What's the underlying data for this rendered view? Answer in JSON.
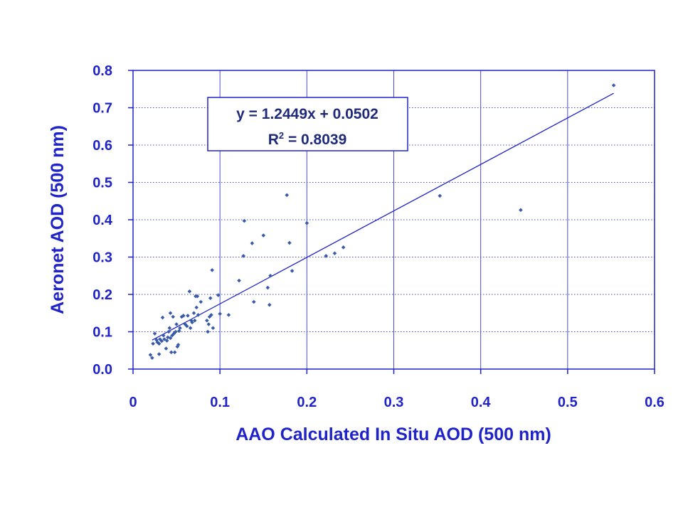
{
  "chart_data": {
    "type": "scatter",
    "xlabel": "AAO Calculated In Situ AOD (500 nm)",
    "ylabel": "Aeronet AOD (500 nm)",
    "xlim": [
      0,
      0.6
    ],
    "ylim": [
      0,
      0.8
    ],
    "x_ticks": [
      "0",
      "0.1",
      "0.2",
      "0.3",
      "0.4",
      "0.5",
      "0.6"
    ],
    "y_ticks": [
      "0.0",
      "0.1",
      "0.2",
      "0.3",
      "0.4",
      "0.5",
      "0.6",
      "0.7",
      "0.8"
    ],
    "grid": true,
    "colors": {
      "axis": "#1f23c8",
      "points": "#3a5ba8",
      "grid": "#4a4ad8",
      "trendline": "#1f23c8"
    },
    "trendline": {
      "slope": 1.2449,
      "intercept": 0.0502,
      "x_range": [
        0.022,
        0.553
      ],
      "equation": "y = 1.2449x + 0.0502",
      "r2_prefix": "R",
      "r2_sup": "2",
      "r2_suffix": " = 0.8039"
    },
    "series": [
      {
        "points": [
          [
            0.02,
            0.038
          ],
          [
            0.022,
            0.03
          ],
          [
            0.023,
            0.068
          ],
          [
            0.025,
            0.095
          ],
          [
            0.027,
            0.078
          ],
          [
            0.028,
            0.072
          ],
          [
            0.03,
            0.04
          ],
          [
            0.03,
            0.068
          ],
          [
            0.031,
            0.08
          ],
          [
            0.033,
            0.075
          ],
          [
            0.034,
            0.138
          ],
          [
            0.035,
            0.09
          ],
          [
            0.036,
            0.08
          ],
          [
            0.038,
            0.055
          ],
          [
            0.039,
            0.076
          ],
          [
            0.04,
            0.085
          ],
          [
            0.041,
            0.1
          ],
          [
            0.042,
            0.11
          ],
          [
            0.043,
            0.083
          ],
          [
            0.043,
            0.15
          ],
          [
            0.044,
            0.045
          ],
          [
            0.045,
            0.09
          ],
          [
            0.046,
            0.14
          ],
          [
            0.047,
            0.095
          ],
          [
            0.048,
            0.045
          ],
          [
            0.049,
            0.1
          ],
          [
            0.05,
            0.12
          ],
          [
            0.051,
            0.06
          ],
          [
            0.052,
            0.065
          ],
          [
            0.053,
            0.102
          ],
          [
            0.054,
            0.11
          ],
          [
            0.056,
            0.14
          ],
          [
            0.058,
            0.143
          ],
          [
            0.06,
            0.12
          ],
          [
            0.062,
            0.115
          ],
          [
            0.063,
            0.143
          ],
          [
            0.065,
            0.208
          ],
          [
            0.066,
            0.11
          ],
          [
            0.067,
            0.13
          ],
          [
            0.068,
            0.125
          ],
          [
            0.07,
            0.15
          ],
          [
            0.071,
            0.13
          ],
          [
            0.072,
            0.195
          ],
          [
            0.073,
            0.165
          ],
          [
            0.074,
            0.195
          ],
          [
            0.075,
            0.145
          ],
          [
            0.078,
            0.18
          ],
          [
            0.085,
            0.13
          ],
          [
            0.086,
            0.1
          ],
          [
            0.087,
            0.12
          ],
          [
            0.088,
            0.14
          ],
          [
            0.089,
            0.19
          ],
          [
            0.09,
            0.145
          ],
          [
            0.091,
            0.265
          ],
          [
            0.092,
            0.11
          ],
          [
            0.098,
            0.198
          ],
          [
            0.1,
            0.148
          ],
          [
            0.11,
            0.145
          ],
          [
            0.122,
            0.237
          ],
          [
            0.127,
            0.303
          ],
          [
            0.128,
            0.397
          ],
          [
            0.137,
            0.337
          ],
          [
            0.139,
            0.18
          ],
          [
            0.15,
            0.358
          ],
          [
            0.155,
            0.218
          ],
          [
            0.157,
            0.172
          ],
          [
            0.158,
            0.25
          ],
          [
            0.177,
            0.466
          ],
          [
            0.18,
            0.338
          ],
          [
            0.183,
            0.263
          ],
          [
            0.2,
            0.391
          ],
          [
            0.222,
            0.303
          ],
          [
            0.232,
            0.31
          ],
          [
            0.242,
            0.326
          ],
          [
            0.353,
            0.464
          ],
          [
            0.446,
            0.426
          ],
          [
            0.553,
            0.76
          ]
        ]
      }
    ]
  }
}
